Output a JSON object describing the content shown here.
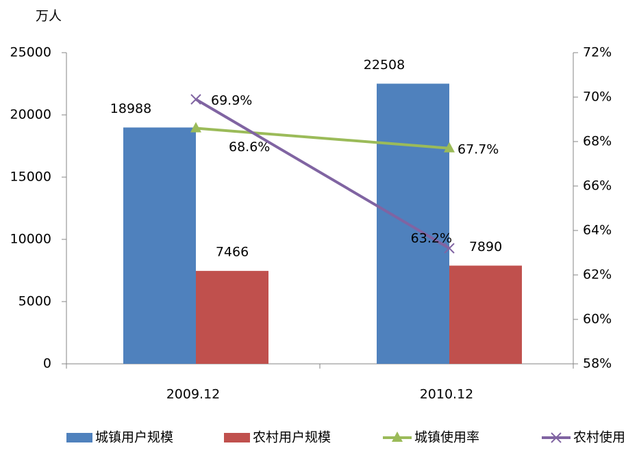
{
  "chart_data": {
    "type": "bar",
    "y_label": "万人",
    "categories": [
      "2009.12",
      "2010.12"
    ],
    "series": [
      {
        "name": "城镇用户规模",
        "type": "bar",
        "color": "#4f81bd",
        "values": [
          18988,
          22508
        ]
      },
      {
        "name": "农村用户规模",
        "type": "bar",
        "color": "#c0504d",
        "values": [
          7466,
          7890
        ]
      },
      {
        "name": "城镇使用率",
        "type": "line",
        "marker": "triangle",
        "axis": "y2",
        "color": "#9bbb59",
        "values": [
          68.6,
          67.7
        ],
        "value_labels": [
          "68.6%",
          "67.7%"
        ]
      },
      {
        "name": "农村使用率",
        "type": "line",
        "marker": "x",
        "axis": "y2",
        "color": "#8064a2",
        "values": [
          69.9,
          63.2
        ],
        "value_labels": [
          "69.9%",
          "63.2%"
        ]
      }
    ],
    "ylim": [
      0,
      25000
    ],
    "yticks": [
      0,
      5000,
      10000,
      15000,
      20000,
      25000
    ],
    "y2lim": [
      58,
      72
    ],
    "y2ticks": [
      {
        "value": 58,
        "label": "58%"
      },
      {
        "value": 60,
        "label": "60%"
      },
      {
        "value": 62,
        "label": "62%"
      },
      {
        "value": 64,
        "label": "64%"
      },
      {
        "value": 66,
        "label": "66%"
      },
      {
        "value": 68,
        "label": "68%"
      },
      {
        "value": 70,
        "label": "70%"
      },
      {
        "value": 72,
        "label": "72%"
      }
    ],
    "legend": "bottom"
  }
}
